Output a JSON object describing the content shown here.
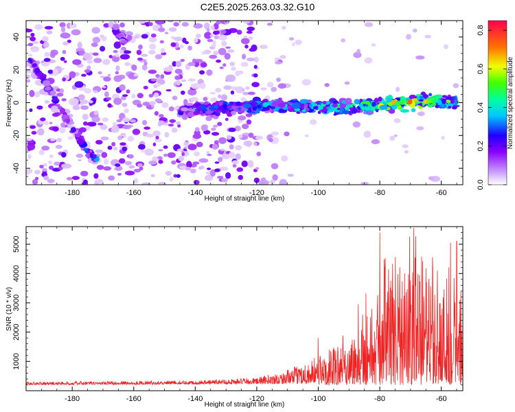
{
  "title": "C2E5.2025.263.03.32.G10",
  "colors": {
    "snr_line": "#ee2222",
    "axis": "#000000",
    "background": "#ffffff"
  },
  "chart_data": [
    {
      "type": "heatmap",
      "name": "spectrogram",
      "xlabel": "Height of straight line (km)",
      "ylabel": "Frequency (Hz)",
      "xlim": [
        -195,
        -53
      ],
      "ylim": [
        -50,
        50
      ],
      "xticks": [
        -180,
        -160,
        -140,
        -120,
        -100,
        -80,
        -60
      ],
      "yticks": [
        -40,
        -20,
        0,
        20,
        40
      ],
      "colorbar": {
        "label": "Normalized spectral amplitude",
        "range": [
          0.0,
          0.85
        ],
        "ticks": [
          0.0,
          0.2,
          0.4,
          0.6,
          0.8
        ]
      },
      "features": [
        {
          "kind": "main_signal",
          "x": [
            -145,
            -130,
            -110,
            -90,
            -70,
            -55
          ],
          "freq": [
            -5,
            -3,
            -2,
            -3,
            0,
            1
          ],
          "amplitude": [
            0.2,
            0.3,
            0.35,
            0.4,
            0.6,
            0.45
          ]
        },
        {
          "kind": "streak",
          "x": [
            -194,
            -188,
            -180,
            -176,
            -172
          ],
          "freq": [
            28,
            10,
            -15,
            -27,
            -35
          ],
          "amplitude": [
            0.3,
            0.25,
            0.2,
            0.25,
            0.3
          ]
        },
        {
          "kind": "streak",
          "x": [
            -166,
            -163
          ],
          "freq": [
            44,
            38
          ],
          "amplitude": [
            0.2,
            0.2
          ]
        }
      ]
    },
    {
      "type": "line",
      "name": "snr",
      "xlabel": "Height of straight line (km)",
      "ylabel": "SNR (10 * v/v)",
      "xlim": [
        -195,
        -53
      ],
      "ylim": [
        0,
        5600
      ],
      "xticks": [
        -180,
        -160,
        -140,
        -120,
        -100,
        -80,
        -60
      ],
      "yticks": [
        1000,
        2000,
        3000,
        4000,
        5000
      ],
      "envelope": [
        {
          "x": -195,
          "y": 300
        },
        {
          "x": -140,
          "y": 350
        },
        {
          "x": -120,
          "y": 450
        },
        {
          "x": -110,
          "y": 700
        },
        {
          "x": -100,
          "y": 1200
        },
        {
          "x": -90,
          "y": 1800
        },
        {
          "x": -85,
          "y": 2600
        },
        {
          "x": -80,
          "y": 3400
        },
        {
          "x": -70,
          "y": 4200
        },
        {
          "x": -60,
          "y": 3800
        },
        {
          "x": -53,
          "y": 3500
        }
      ],
      "peaks": [
        {
          "x": -80,
          "y": 5400
        },
        {
          "x": -69,
          "y": 5550
        },
        {
          "x": -57,
          "y": 5050
        },
        {
          "x": -55,
          "y": 5100
        },
        {
          "x": -87,
          "y": 2950
        },
        {
          "x": -100,
          "y": 1800
        }
      ]
    }
  ]
}
